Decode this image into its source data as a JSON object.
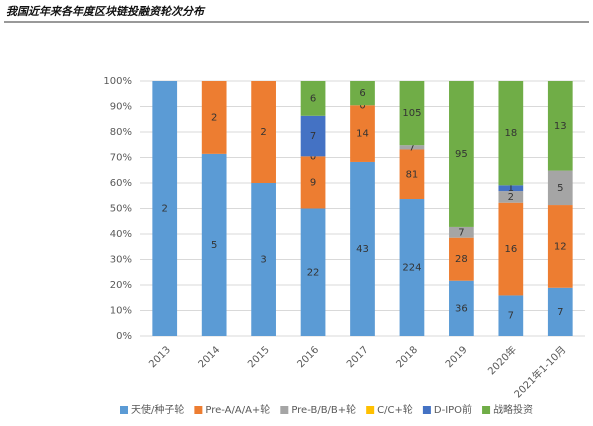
{
  "chart_data": {
    "type": "bar",
    "stacked": "percent",
    "title": "我国近年来各年度区块链投融资轮次分布",
    "categories": [
      "2013",
      "2014",
      "2015",
      "2016",
      "2017",
      "2018",
      "2019",
      "2020年",
      "2021年1-10月"
    ],
    "series": [
      {
        "name": "天使/种子轮",
        "color": "#5b9bd5",
        "values": [
          2,
          5,
          3,
          22,
          43,
          224,
          36,
          7,
          7
        ]
      },
      {
        "name": "Pre-A/A/A+轮",
        "color": "#ed7d31",
        "values": [
          null,
          2,
          2,
          9,
          14,
          81,
          28,
          16,
          12
        ]
      },
      {
        "name": "Pre-B/B/B+轮",
        "color": "#a5a5a5",
        "values": [
          null,
          null,
          null,
          0,
          null,
          7,
          7,
          2,
          5
        ]
      },
      {
        "name": "C/C+轮",
        "color": "#ffc000",
        "values": [
          null,
          null,
          null,
          null,
          0,
          null,
          null,
          null,
          null
        ]
      },
      {
        "name": "D-IPO前",
        "color": "#4472c4",
        "values": [
          null,
          null,
          null,
          7,
          null,
          null,
          null,
          1,
          null
        ]
      },
      {
        "name": "战略投资",
        "color": "#70ad47",
        "values": [
          null,
          null,
          null,
          6,
          6,
          105,
          95,
          18,
          13
        ]
      }
    ],
    "ylim": [
      0,
      100
    ],
    "yticks": [
      {
        "value": 0,
        "label": "0%"
      },
      {
        "value": 10,
        "label": "10%"
      },
      {
        "value": 20,
        "label": "20%"
      },
      {
        "value": 30,
        "label": "30%"
      },
      {
        "value": 40,
        "label": "40%"
      },
      {
        "value": 50,
        "label": "50%"
      },
      {
        "value": 60,
        "label": "60%"
      },
      {
        "value": 70,
        "label": "70%"
      },
      {
        "value": 80,
        "label": "80%"
      },
      {
        "value": 90,
        "label": "90%"
      },
      {
        "value": 100,
        "label": "100%"
      }
    ],
    "grid": true,
    "legend": "bottom"
  }
}
